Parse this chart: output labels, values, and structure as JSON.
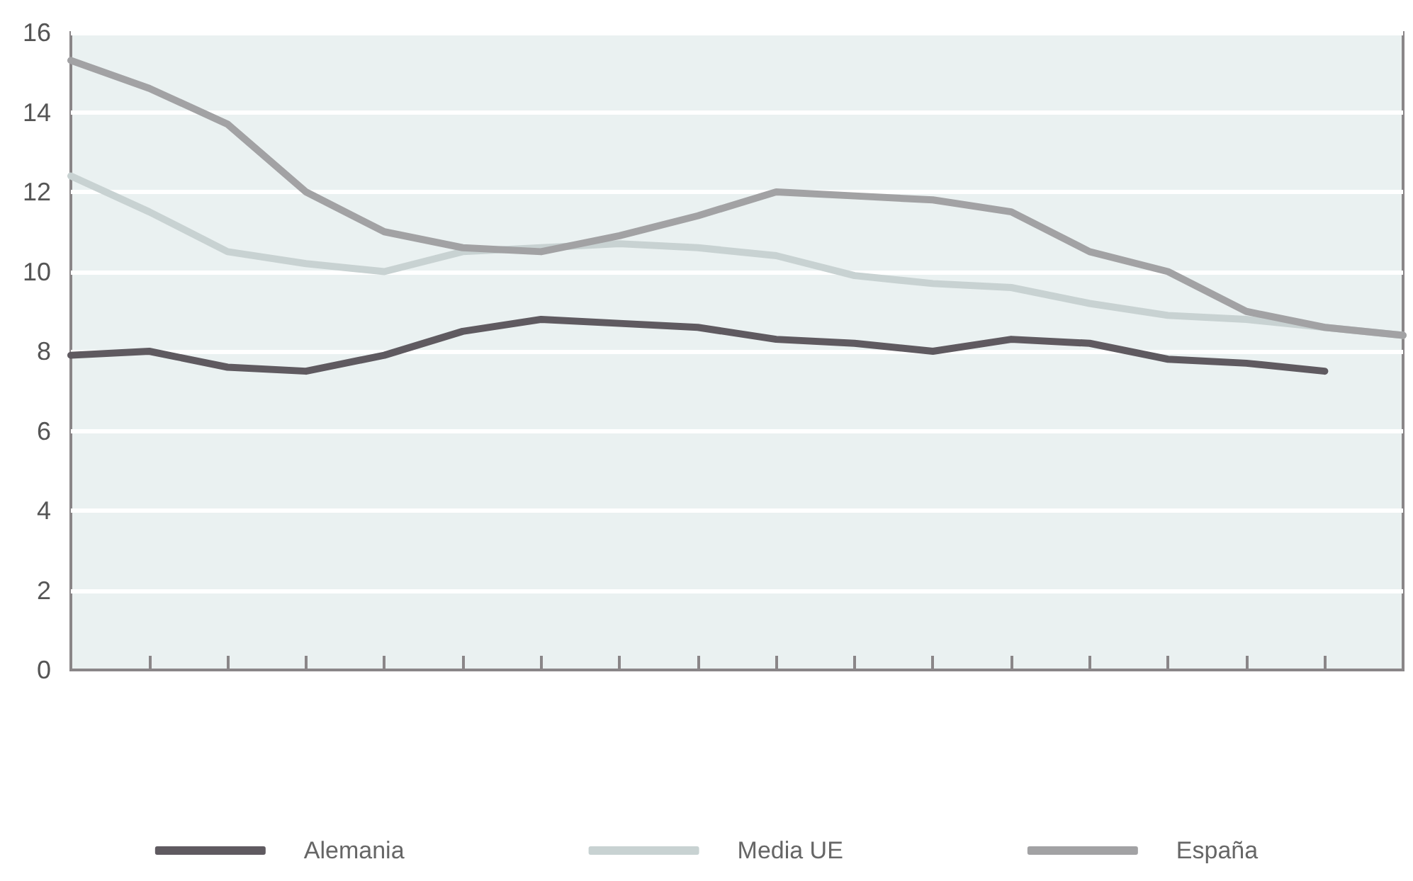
{
  "chart_data": {
    "type": "line",
    "categories": [
      null,
      null,
      null,
      null,
      null,
      null,
      null,
      null,
      null,
      null,
      null,
      null,
      null,
      null,
      null,
      null,
      null,
      null
    ],
    "series": [
      {
        "name": "Alemania",
        "color": "#5f5a60",
        "values": [
          7.9,
          8.0,
          7.6,
          7.5,
          7.9,
          8.5,
          8.8,
          8.7,
          8.6,
          8.3,
          8.2,
          8.0,
          8.3,
          8.2,
          7.8,
          7.7,
          7.5,
          null
        ]
      },
      {
        "name": "Media UE",
        "color": "#c8d2d2",
        "values": [
          12.4,
          11.5,
          10.5,
          10.2,
          10.0,
          10.5,
          10.6,
          10.7,
          10.6,
          10.4,
          9.9,
          9.7,
          9.6,
          9.2,
          8.9,
          8.8,
          8.6,
          8.4
        ]
      },
      {
        "name": "España",
        "color": "#a2a2a4",
        "values": [
          15.3,
          14.6,
          13.7,
          12.0,
          11.0,
          10.6,
          10.5,
          10.9,
          11.4,
          12.0,
          11.9,
          11.8,
          11.5,
          10.5,
          10.0,
          9.0,
          8.6,
          8.4
        ]
      }
    ],
    "ylim": [
      0,
      16
    ],
    "yticks": [
      0,
      2,
      4,
      6,
      8,
      10,
      12,
      14,
      16
    ],
    "grid": "y",
    "legend": "bottom",
    "tick_labels": "y",
    "marker": "none",
    "line_style": "solid"
  }
}
